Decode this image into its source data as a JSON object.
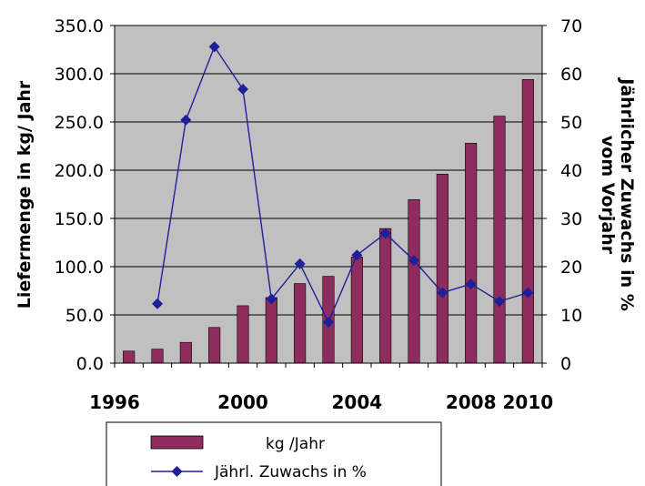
{
  "chart_data": {
    "type": "bar",
    "x": [
      1996,
      1997,
      1998,
      1999,
      2000,
      2001,
      2002,
      2003,
      2004,
      2005,
      2006,
      2007,
      2008,
      2009,
      2010
    ],
    "x_tick_labels": [
      "1996",
      "2000",
      "2004",
      "2008",
      "2010"
    ],
    "series": [
      {
        "name": "kg /Jahr",
        "type": "bar",
        "axis": "left",
        "color": "#8e2c5e",
        "values": [
          12.5,
          14.5,
          21.5,
          37.0,
          59.5,
          68.0,
          82.5,
          90.0,
          110.0,
          139.5,
          169.5,
          196.0,
          228.0,
          256.0,
          294.0
        ]
      },
      {
        "name": "Jährl. Zuwachs in %",
        "type": "line",
        "axis": "right",
        "color": "#1f1f99",
        "marker": "diamond",
        "x": [
          1997,
          1998,
          1999,
          2000,
          2001,
          2002,
          2003,
          2004,
          2005,
          2006,
          2007,
          2008,
          2009,
          2010
        ],
        "values": [
          12.3,
          50.4,
          65.6,
          56.8,
          13.3,
          20.6,
          8.5,
          22.4,
          26.9,
          21.3,
          14.6,
          16.4,
          12.8,
          14.6
        ]
      }
    ],
    "y_left": {
      "label": "Liefermenge in kg/ Jahr",
      "ylim": [
        0,
        350
      ],
      "ticks": [
        "0.0",
        "50.0",
        "100.0",
        "150.0",
        "200.0",
        "250.0",
        "300.0",
        "350.0"
      ]
    },
    "y_right": {
      "label_lines": [
        "Jährlicher Zuwachs in %",
        "vom Vorjahr"
      ],
      "ylim": [
        0,
        70
      ],
      "ticks": [
        "0",
        "10",
        "20",
        "30",
        "40",
        "50",
        "60",
        "70"
      ]
    },
    "grid": true,
    "plot_background": "#c0c0c0",
    "legend_position": "bottom"
  }
}
